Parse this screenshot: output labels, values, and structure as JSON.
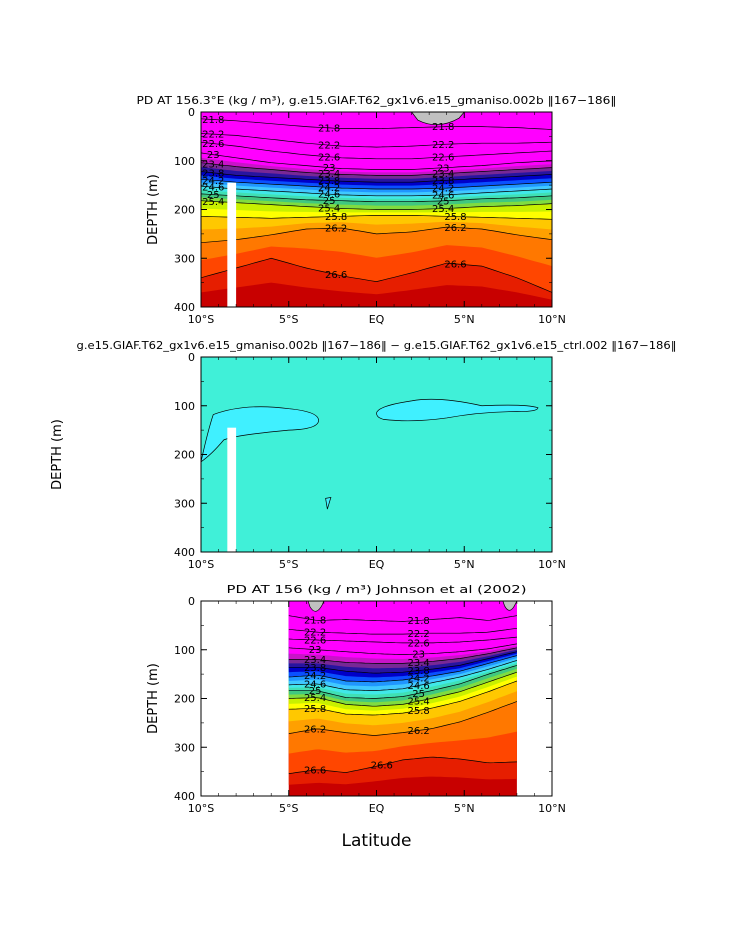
{
  "chart_data": [
    {
      "type": "heatmap",
      "title": "PD AT 156.3°E (kg / m³), g.e15.GIAF.T62_gx1v6.e15_gmaniso.002b ‖167−186‖",
      "xlabel": "",
      "ylabel": "DEPTH  (m)",
      "xlim": [
        -10,
        10
      ],
      "ylim": [
        400,
        0
      ],
      "xticks": [
        "10°S",
        "5°S",
        "EQ",
        "5°N",
        "10°N"
      ],
      "yticks": [
        "0",
        "100",
        "200",
        "300",
        "400"
      ],
      "data_extent": [
        -10,
        10
      ],
      "isopycnals": [
        {
          "label": "21.8",
          "depths": [
            14,
            18,
            24,
            30,
            34,
            34,
            32,
            30,
            30,
            32,
            36
          ]
        },
        {
          "label": "22.2",
          "depths": [
            44,
            48,
            56,
            64,
            70,
            72,
            70,
            66,
            64,
            64,
            62
          ]
        },
        {
          "label": "22.6",
          "depths": [
            62,
            70,
            80,
            88,
            94,
            96,
            96,
            92,
            88,
            84,
            80
          ]
        },
        {
          "label": "23",
          "depths": [
            84,
            94,
            104,
            110,
            116,
            118,
            118,
            114,
            110,
            104,
            100
          ]
        },
        {
          "label": "23.4",
          "depths": [
            104,
            112,
            118,
            124,
            128,
            130,
            130,
            126,
            122,
            118,
            114
          ]
        },
        {
          "label": "23.8",
          "depths": [
            122,
            130,
            134,
            138,
            142,
            144,
            144,
            140,
            136,
            132,
            128
          ]
        },
        {
          "label": "24.2",
          "depths": [
            138,
            144,
            148,
            152,
            156,
            158,
            158,
            156,
            152,
            148,
            144
          ]
        },
        {
          "label": "24.6",
          "depths": [
            152,
            158,
            162,
            166,
            170,
            172,
            172,
            170,
            166,
            162,
            158
          ]
        },
        {
          "label": "25",
          "depths": [
            168,
            172,
            176,
            180,
            182,
            184,
            184,
            182,
            178,
            176,
            172
          ]
        },
        {
          "label": "25.4",
          "depths": [
            182,
            186,
            190,
            194,
            198,
            200,
            200,
            198,
            194,
            192,
            188
          ]
        },
        {
          "label": "25.8",
          "depths": [
            214,
            216,
            218,
            216,
            214,
            212,
            212,
            214,
            216,
            218,
            220
          ]
        },
        {
          "label": "26.2",
          "depths": [
            268,
            262,
            252,
            240,
            238,
            250,
            246,
            236,
            240,
            252,
            262
          ]
        },
        {
          "label": "26.6",
          "depths": [
            340,
            320,
            300,
            320,
            336,
            348,
            330,
            310,
            316,
            340,
            370
          ]
        }
      ],
      "masked": [
        {
          "what": "gap",
          "lat": [
            -8.5,
            -8.0
          ],
          "depth": [
            145,
            400
          ]
        },
        {
          "what": "gray",
          "lat": [
            2.0,
            5.0
          ],
          "depth": [
            0,
            25
          ]
        }
      ],
      "colors": [
        "#c80000",
        "#e61e00",
        "#ff4600",
        "#ff7800",
        "#ffa000",
        "#ffc800",
        "#ffff00",
        "#c8f000",
        "#80dc40",
        "#40c880",
        "#40e0b4",
        "#40e8e8",
        "#40c8ff",
        "#2096ff",
        "#0a50ff",
        "#0000c8",
        "#2814a0",
        "#782896",
        "#c814c8",
        "#ff00ff"
      ]
    },
    {
      "type": "heatmap",
      "title": "g.e15.GIAF.T62_gx1v6.e15_gmaniso.002b ‖167−186‖ − g.e15.GIAF.T62_gx1v6.e15_ctrl.002 ‖167−186‖",
      "xlabel": "",
      "ylabel": "DEPTH  (m)",
      "xlim": [
        -10,
        10
      ],
      "ylim": [
        400,
        0
      ],
      "xticks": [
        "10°S",
        "5°S",
        "EQ",
        "5°N",
        "10°N"
      ],
      "yticks": [
        "0",
        "100",
        "200",
        "300",
        "400"
      ],
      "background": "#40f0d8",
      "anomaly_color": "#40f0ff",
      "anomalies": [
        {
          "lat": [
            -10,
            -3.3
          ],
          "depth": [
            98,
            215
          ]
        },
        {
          "lat": [
            0,
            9.2
          ],
          "depth": [
            80,
            135
          ]
        }
      ],
      "masked": [
        {
          "what": "gap",
          "lat": [
            -8.5,
            -8.0
          ],
          "depth": [
            145,
            400
          ]
        }
      ]
    },
    {
      "type": "heatmap",
      "title": "PD AT 156 (kg / m³) Johnson et al (2002)",
      "xlabel": "Latitude",
      "ylabel": "DEPTH  (m)",
      "xlim": [
        -10,
        10
      ],
      "ylim": [
        400,
        0
      ],
      "xticks": [
        "10°S",
        "5°S",
        "EQ",
        "5°N",
        "10°N"
      ],
      "yticks": [
        "0",
        "100",
        "200",
        "300",
        "400"
      ],
      "data_extent": [
        -5,
        8
      ],
      "isopycnals": [
        {
          "label": "21.8",
          "depths": [
            30,
            40,
            38,
            40,
            42,
            38,
            34,
            40,
            30
          ]
        },
        {
          "label": "22.2",
          "depths": [
            58,
            64,
            66,
            68,
            68,
            66,
            66,
            64,
            56
          ]
        },
        {
          "label": "22.6",
          "depths": [
            78,
            80,
            82,
            84,
            86,
            86,
            84,
            80,
            74
          ]
        },
        {
          "label": "23",
          "depths": [
            96,
            100,
            104,
            108,
            110,
            108,
            104,
            98,
            88
          ]
        },
        {
          "label": "23.4",
          "depths": [
            120,
            120,
            126,
            128,
            128,
            124,
            118,
            108,
            96
          ]
        },
        {
          "label": "23.8",
          "depths": [
            136,
            136,
            144,
            148,
            146,
            140,
            132,
            118,
            104
          ]
        },
        {
          "label": "24.2",
          "depths": [
            156,
            152,
            164,
            166,
            162,
            154,
            144,
            128,
            112
          ]
        },
        {
          "label": "24.6",
          "depths": [
            172,
            170,
            182,
            184,
            180,
            168,
            156,
            140,
            122
          ]
        },
        {
          "label": "25",
          "depths": [
            184,
            184,
            198,
            200,
            196,
            184,
            170,
            150,
            132
          ]
        },
        {
          "label": "25.4",
          "depths": [
            200,
            198,
            212,
            216,
            212,
            200,
            186,
            166,
            146
          ]
        },
        {
          "label": "25.8",
          "depths": [
            222,
            220,
            232,
            234,
            230,
            220,
            206,
            186,
            164
          ]
        },
        {
          "label": "26.2",
          "depths": [
            272,
            262,
            270,
            276,
            270,
            262,
            248,
            228,
            206
          ]
        },
        {
          "label": "26.6",
          "depths": [
            354,
            346,
            352,
            340,
            326,
            320,
            324,
            332,
            330
          ]
        }
      ],
      "masked": [
        {
          "what": "gray",
          "lat": [
            7.2,
            8.0
          ],
          "depth": [
            0,
            18
          ]
        },
        {
          "what": "gray",
          "lat": [
            -3.9,
            -3.0
          ],
          "depth": [
            0,
            20
          ]
        }
      ],
      "colors": [
        "#c80000",
        "#e61e00",
        "#ff4600",
        "#ff7800",
        "#ffa000",
        "#ffc800",
        "#ffff00",
        "#c8f000",
        "#80dc40",
        "#40c880",
        "#40e0b4",
        "#40e8e8",
        "#40c8ff",
        "#2096ff",
        "#0a50ff",
        "#0000c8",
        "#2814a0",
        "#782896",
        "#c814c8",
        "#ff00ff"
      ]
    }
  ]
}
